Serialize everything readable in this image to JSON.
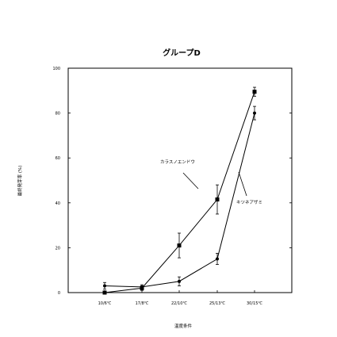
{
  "chart_data": {
    "type": "line",
    "title": "グループD",
    "xlabel": "温度条件",
    "ylabel": "最終発芽率 (%)",
    "categories": [
      "10/6℃",
      "17/8℃",
      "22/10℃",
      "25/13℃",
      "30/15℃"
    ],
    "ylim": [
      0,
      100
    ],
    "yticks": [
      0,
      20,
      40,
      60,
      80,
      100
    ],
    "grid": false,
    "legend": "none",
    "series": [
      {
        "name": "カラスノエンドウ",
        "marker": "square",
        "values": [
          0,
          2,
          21,
          41.5,
          89.5
        ],
        "errors": [
          0.5,
          1,
          5.5,
          6.5,
          2
        ]
      },
      {
        "name": "キツネアザミ",
        "marker": "circle",
        "values": [
          3,
          2.5,
          5,
          15,
          80
        ],
        "errors": [
          1.5,
          1,
          2,
          2.5,
          3
        ]
      }
    ]
  }
}
